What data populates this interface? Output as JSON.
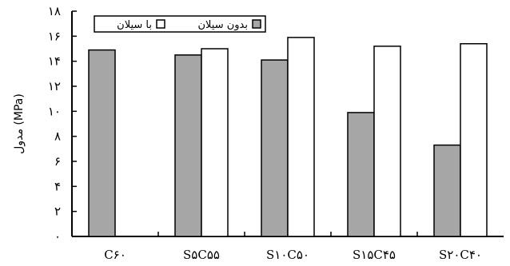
{
  "chart_data": {
    "type": "bar",
    "title": "",
    "ylabel": "مدول (MPa)",
    "xlabel": "",
    "ylim": [
      0,
      18
    ],
    "yticks": [
      0,
      2,
      4,
      6,
      8,
      10,
      12,
      14,
      16,
      18
    ],
    "ytick_labels": [
      "۰",
      "۲",
      "۴",
      "۶",
      "۸",
      "۱۰",
      "۱۲",
      "۱۴",
      "۱۶",
      "۱۸"
    ],
    "categories": [
      "C۶۰",
      "S۵C۵۵",
      "S۱۰C۵۰",
      "S۱۵C۴۵",
      "S۲۰C۴۰"
    ],
    "series": [
      {
        "name": "بدون سیلان",
        "values": [
          14.9,
          14.5,
          14.1,
          9.9,
          7.3
        ],
        "color": "#a6a6a6"
      },
      {
        "name": "با سیلان",
        "values": [
          null,
          15.0,
          15.9,
          15.2,
          15.4
        ],
        "color": "#ffffff"
      }
    ],
    "legend": "top-left",
    "grid": false
  }
}
